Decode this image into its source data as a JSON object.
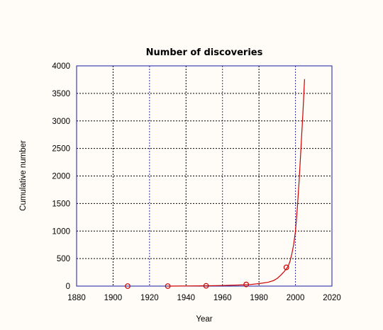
{
  "chart_data": {
    "type": "line",
    "title": "Number of discoveries",
    "xlabel": "Year",
    "ylabel": "Cumulative number",
    "xlim": [
      1880,
      2020
    ],
    "ylim": [
      0,
      4000
    ],
    "xticks": [
      1880,
      1900,
      1920,
      1940,
      1960,
      1980,
      2000,
      2020
    ],
    "yticks": [
      0,
      500,
      1000,
      1500,
      2000,
      2500,
      3000,
      3500,
      4000
    ],
    "grid": true,
    "colors": {
      "line": "#cc0000",
      "marker": "#cc0000",
      "frame": "#1a1aa6",
      "grid": "#2d2d9a"
    },
    "series": [
      {
        "type": "line",
        "x": [
          1930,
          1940,
          1950,
          1960,
          1970,
          1975,
          1980,
          1985,
          1988,
          1990,
          1992,
          1994,
          1996,
          1997,
          1998,
          1999,
          2000,
          2001,
          2002,
          2003,
          2004,
          2005
        ],
        "y": [
          0,
          2,
          5,
          10,
          20,
          28,
          45,
          70,
          100,
          140,
          200,
          270,
          360,
          450,
          580,
          750,
          1000,
          1400,
          1900,
          2500,
          3100,
          3760
        ]
      },
      {
        "type": "scatter",
        "marker": "circle",
        "x": [
          1908,
          1930,
          1951,
          1973,
          1995
        ],
        "y": [
          0,
          0,
          5,
          30,
          340
        ]
      }
    ]
  }
}
